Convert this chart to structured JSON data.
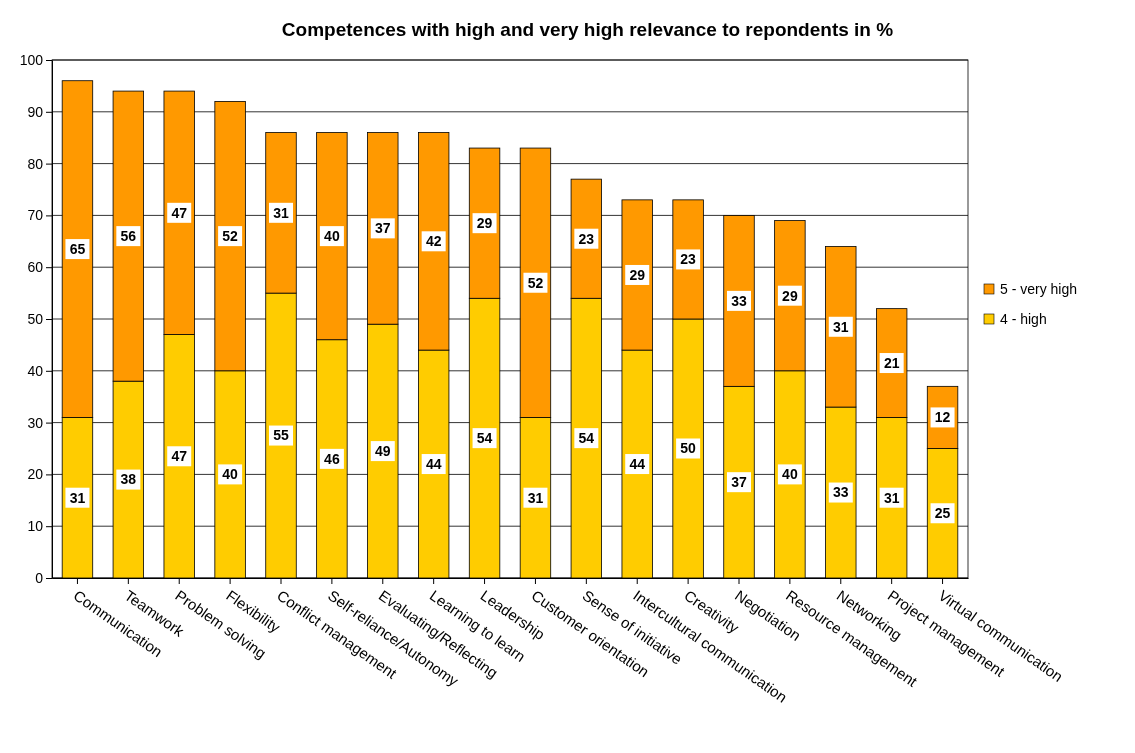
{
  "chart_data": {
    "type": "bar",
    "title": "Competences with high and very high relevance to repondents in %",
    "categories": [
      "Communication",
      "Teamwork",
      "Problem solving",
      "Flexibility",
      "Conflict management",
      "Self-reliance/Autonomy",
      "Evaluating/Reflecting",
      "Learning to learn",
      "Leadership",
      "Customer orientation",
      "Sense of initiative",
      "Intercultural communication",
      "Creativity",
      "Negotiation",
      "Resource management",
      "Networking",
      "Project management",
      "Virtual communication"
    ],
    "series": [
      {
        "name": "4 - high",
        "color": "#ffcc00",
        "values": [
          31,
          38,
          47,
          40,
          55,
          46,
          49,
          44,
          54,
          31,
          54,
          44,
          50,
          37,
          40,
          33,
          31,
          25
        ]
      },
      {
        "name": "5 - very high",
        "color": "#ff9900",
        "values": [
          65,
          56,
          47,
          52,
          31,
          40,
          37,
          42,
          29,
          52,
          23,
          29,
          23,
          33,
          29,
          31,
          21,
          12
        ]
      }
    ],
    "stacked": true,
    "ylim": [
      0,
      100
    ],
    "yticks": [
      0,
      10,
      20,
      30,
      40,
      50,
      60,
      70,
      80,
      90,
      100
    ],
    "grid": "y",
    "legend": "right",
    "data_labels": true
  }
}
